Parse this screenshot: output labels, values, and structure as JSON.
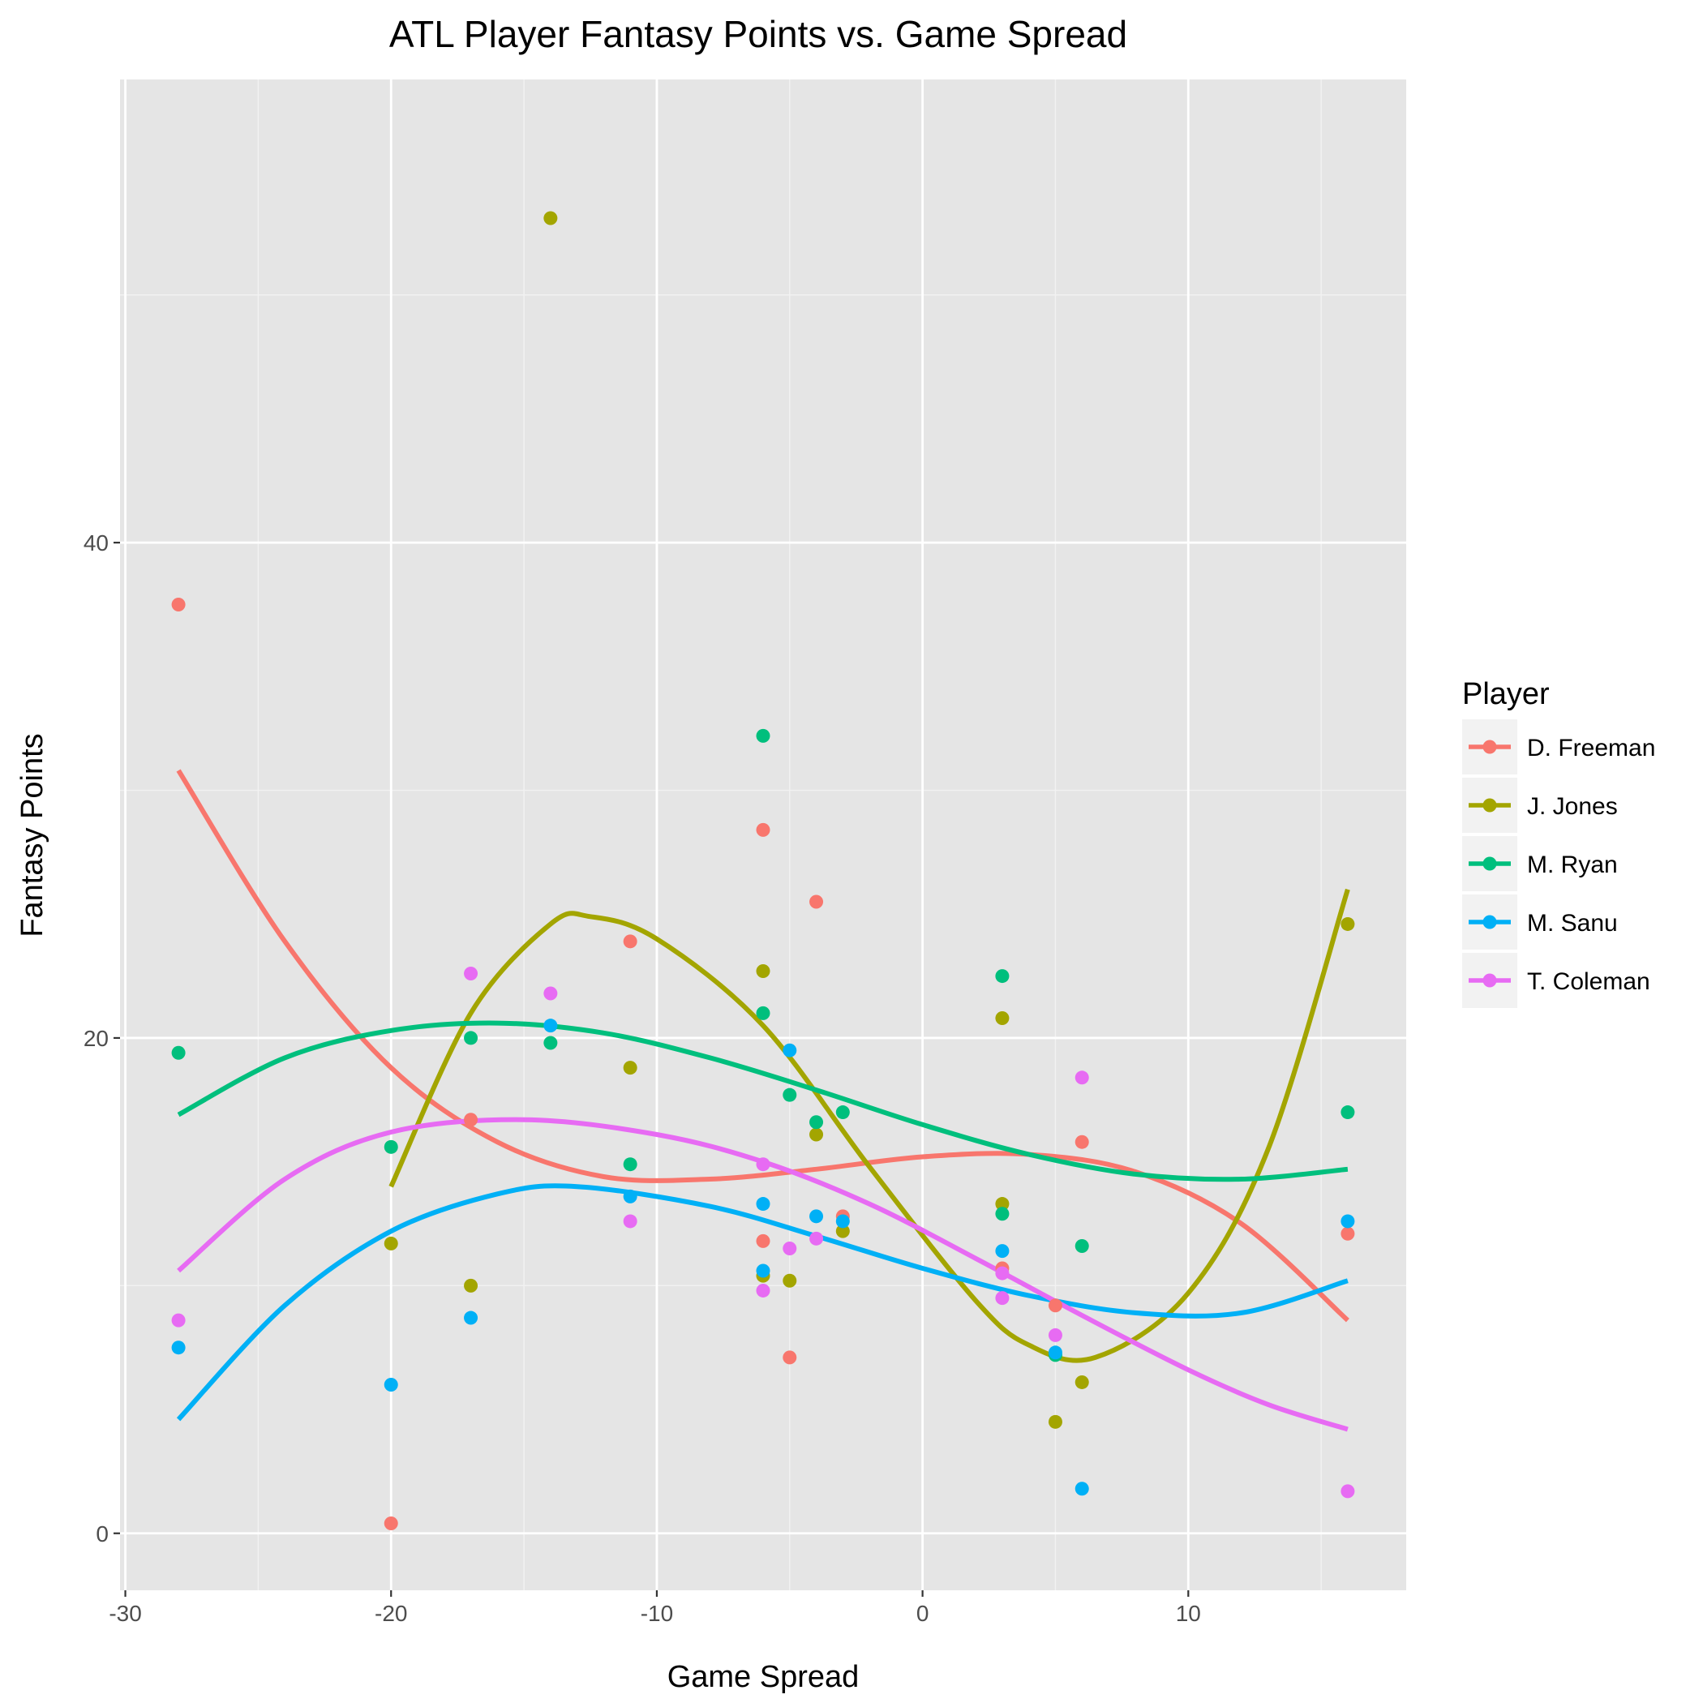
{
  "chart_data": {
    "type": "scatter",
    "title": "ATL Player Fantasy Points vs. Game Spread",
    "xlabel": "Game Spread",
    "ylabel": "Fantasy Points",
    "xlim": [
      -30.2,
      18.2
    ],
    "ylim": [
      -2.3,
      58.7
    ],
    "xticks": [
      -30,
      -20,
      -10,
      0,
      10
    ],
    "yticks": [
      0,
      20,
      40
    ],
    "grid": true,
    "background": "#e5e5e5",
    "trend": "smooth fitted curve per series",
    "legend": {
      "title": "Player",
      "position": "right"
    },
    "series": [
      {
        "name": "D. Freeman",
        "color": "#f8766d",
        "points": [
          [
            -28,
            37.5
          ],
          [
            -20,
            0.4
          ],
          [
            -17,
            16.7
          ],
          [
            -11,
            23.9
          ],
          [
            -6,
            28.4
          ],
          [
            -6,
            11.8
          ],
          [
            -5,
            7.1
          ],
          [
            -4,
            25.5
          ],
          [
            -3,
            12.8
          ],
          [
            3,
            10.7
          ],
          [
            5,
            9.2
          ],
          [
            6,
            15.8
          ],
          [
            16,
            12.1
          ]
        ],
        "curve": [
          [
            -28,
            30.8
          ],
          [
            -24,
            23.9
          ],
          [
            -20,
            18.8
          ],
          [
            -16,
            15.8
          ],
          [
            -12,
            14.4
          ],
          [
            -8,
            14.3
          ],
          [
            -4,
            14.7
          ],
          [
            0,
            15.2
          ],
          [
            4,
            15.3
          ],
          [
            8,
            14.6
          ],
          [
            12,
            12.5
          ],
          [
            16,
            8.6
          ]
        ]
      },
      {
        "name": "J. Jones",
        "color": "#a3a500",
        "points": [
          [
            -20,
            11.7
          ],
          [
            -17,
            10.0
          ],
          [
            -14,
            53.1
          ],
          [
            -11,
            18.8
          ],
          [
            -6,
            22.7
          ],
          [
            -6,
            10.4
          ],
          [
            -5,
            10.2
          ],
          [
            -4,
            16.1
          ],
          [
            -3,
            12.2
          ],
          [
            3,
            13.3
          ],
          [
            3,
            20.8
          ],
          [
            5,
            4.5
          ],
          [
            6,
            6.1
          ],
          [
            16,
            24.6
          ]
        ],
        "curve": [
          [
            -20,
            14.0
          ],
          [
            -17,
            21.0
          ],
          [
            -14,
            24.6
          ],
          [
            -12.5,
            24.9
          ],
          [
            -10,
            24.0
          ],
          [
            -6,
            20.5
          ],
          [
            -2,
            14.8
          ],
          [
            2,
            9.4
          ],
          [
            4,
            7.6
          ],
          [
            6.5,
            7.1
          ],
          [
            10,
            9.7
          ],
          [
            13,
            15.5
          ],
          [
            16,
            26.0
          ]
        ]
      },
      {
        "name": "M. Ryan",
        "color": "#00bf7d",
        "points": [
          [
            -28,
            19.4
          ],
          [
            -20,
            15.6
          ],
          [
            -17,
            20.0
          ],
          [
            -14,
            19.8
          ],
          [
            -11,
            14.9
          ],
          [
            -6,
            32.2
          ],
          [
            -6,
            21.0
          ],
          [
            -5,
            17.7
          ],
          [
            -4,
            16.6
          ],
          [
            -3,
            17.0
          ],
          [
            3,
            22.5
          ],
          [
            3,
            12.9
          ],
          [
            5,
            7.2
          ],
          [
            6,
            11.6
          ],
          [
            16,
            17.0
          ]
        ],
        "curve": [
          [
            -28,
            16.9
          ],
          [
            -24,
            19.2
          ],
          [
            -20,
            20.3
          ],
          [
            -16,
            20.6
          ],
          [
            -12,
            20.2
          ],
          [
            -8,
            19.2
          ],
          [
            -4,
            17.9
          ],
          [
            0,
            16.5
          ],
          [
            4,
            15.3
          ],
          [
            8,
            14.5
          ],
          [
            12,
            14.3
          ],
          [
            16,
            14.7
          ]
        ]
      },
      {
        "name": "M. Sanu",
        "color": "#00b0f6",
        "points": [
          [
            -28,
            7.5
          ],
          [
            -20,
            6.0
          ],
          [
            -17,
            8.7
          ],
          [
            -14,
            20.5
          ],
          [
            -11,
            13.6
          ],
          [
            -6,
            13.3
          ],
          [
            -6,
            10.6
          ],
          [
            -5,
            19.5
          ],
          [
            -4,
            12.8
          ],
          [
            -3,
            12.6
          ],
          [
            3,
            11.4
          ],
          [
            5,
            7.3
          ],
          [
            6,
            1.8
          ],
          [
            16,
            12.6
          ]
        ],
        "curve": [
          [
            -28,
            4.6
          ],
          [
            -24,
            9.2
          ],
          [
            -20,
            12.2
          ],
          [
            -16,
            13.7
          ],
          [
            -13,
            14.0
          ],
          [
            -8,
            13.2
          ],
          [
            -4,
            12.0
          ],
          [
            0,
            10.7
          ],
          [
            4,
            9.6
          ],
          [
            8,
            8.9
          ],
          [
            12,
            8.9
          ],
          [
            16,
            10.2
          ]
        ]
      },
      {
        "name": "T. Coleman",
        "color": "#e76bf3",
        "points": [
          [
            -28,
            8.6
          ],
          [
            -17,
            22.6
          ],
          [
            -14,
            21.8
          ],
          [
            -11,
            12.6
          ],
          [
            -6,
            14.9
          ],
          [
            -6,
            9.8
          ],
          [
            -5,
            11.5
          ],
          [
            -4,
            11.9
          ],
          [
            3,
            10.5
          ],
          [
            3,
            9.5
          ],
          [
            5,
            8.0
          ],
          [
            6,
            18.4
          ],
          [
            16,
            1.7
          ]
        ],
        "curve": [
          [
            -28,
            10.6
          ],
          [
            -24,
            14.3
          ],
          [
            -20,
            16.2
          ],
          [
            -15,
            16.7
          ],
          [
            -10,
            16.1
          ],
          [
            -6,
            15.0
          ],
          [
            -2,
            13.3
          ],
          [
            2,
            11.1
          ],
          [
            6,
            8.8
          ],
          [
            10,
            6.6
          ],
          [
            13,
            5.2
          ],
          [
            16,
            4.2
          ]
        ]
      }
    ]
  }
}
